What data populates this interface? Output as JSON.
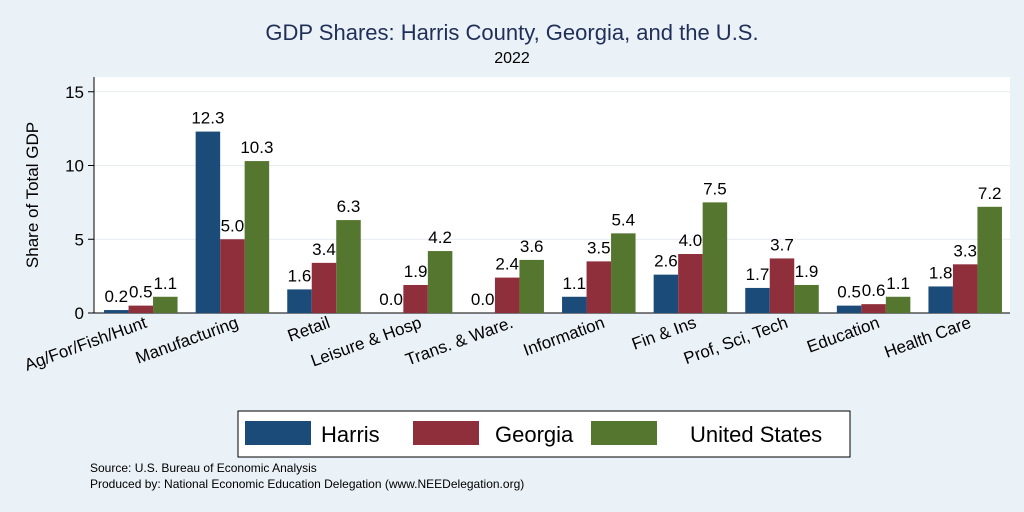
{
  "title": "GDP Shares: Harris County, Georgia, and the U.S.",
  "subtitle": "2022",
  "footer": {
    "source": "Source: U.S. Bureau of Economic Analysis",
    "produced": "Produced by: National Economic Education Delegation (www.NEEDelegation.org)"
  },
  "colors": {
    "Harris": "#1b4b78",
    "Georgia": "#8f2f3c",
    "United States": "#54762f",
    "plot_bg": "#ffffff",
    "page_bg": "#eaf1f7"
  },
  "chart_data": {
    "type": "bar",
    "title": "GDP Shares: Harris County, Georgia, and the U.S.",
    "subtitle": "2022",
    "xlabel": "",
    "ylabel": "Share of Total GDP",
    "ylim": [
      0,
      16
    ],
    "yticks": [
      0,
      5,
      10,
      15
    ],
    "grid": true,
    "legend": "bottom",
    "categories": [
      "Ag/For/Fish/Hunt",
      "Manufacturing",
      "Retail",
      "Leisure & Hosp",
      "Trans. & Ware.",
      "Information",
      "Fin & Ins",
      "Prof, Sci, Tech",
      "Education",
      "Health Care"
    ],
    "series": [
      {
        "name": "Harris",
        "values": [
          0.2,
          12.3,
          1.6,
          0.0,
          0.0,
          1.1,
          2.6,
          1.7,
          0.5,
          1.8
        ]
      },
      {
        "name": "Georgia",
        "values": [
          0.5,
          5.0,
          3.4,
          1.9,
          2.4,
          3.5,
          4.0,
          3.7,
          0.6,
          3.3
        ]
      },
      {
        "name": "United States",
        "values": [
          1.1,
          10.3,
          6.3,
          4.2,
          3.6,
          5.4,
          7.5,
          1.9,
          1.1,
          7.2
        ]
      }
    ]
  }
}
